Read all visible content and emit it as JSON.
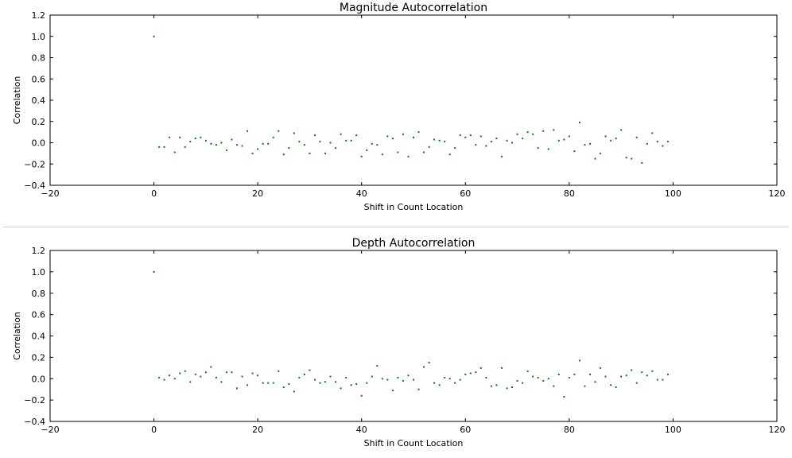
{
  "chart_data": [
    {
      "type": "scatter",
      "title": "Magnitude Autocorrelation",
      "xlabel": "Shift in Count Location",
      "ylabel": "Correlation",
      "xlim": [
        -20,
        120
      ],
      "ylim": [
        -0.4,
        1.2
      ],
      "xticks": [
        "−20",
        "0",
        "20",
        "40",
        "60",
        "80",
        "100",
        "120"
      ],
      "yticks": [
        "−0.4",
        "−0.2",
        "0.0",
        "0.2",
        "0.4",
        "0.6",
        "0.8",
        "1.0",
        "1.2"
      ],
      "grid": false,
      "marker_color": "#008000",
      "series": [
        {
          "x": [
            0,
            1,
            2,
            3,
            4,
            5,
            6,
            7,
            8,
            9,
            10,
            11,
            12,
            13,
            14,
            15,
            16,
            17,
            18,
            19,
            20,
            21,
            22,
            23,
            24,
            25,
            26,
            27,
            28,
            29,
            30,
            31,
            32,
            33,
            34,
            35,
            36,
            37,
            38,
            39,
            40,
            41,
            42,
            43,
            44,
            45,
            46,
            47,
            48,
            49,
            50,
            51,
            52,
            53,
            54,
            55,
            56,
            57,
            58,
            59,
            60,
            61,
            62,
            63,
            64,
            65,
            66,
            67,
            68,
            69,
            70,
            71,
            72,
            73,
            74,
            75,
            76,
            77,
            78,
            79,
            80,
            81,
            82,
            83,
            84,
            85,
            86,
            87,
            88,
            89,
            90,
            91,
            92,
            93,
            94,
            95,
            96,
            97,
            98,
            99
          ],
          "y": [
            1.0,
            -0.04,
            -0.04,
            0.05,
            -0.09,
            0.05,
            -0.04,
            0.01,
            0.04,
            0.05,
            0.02,
            -0.01,
            -0.02,
            0.0,
            -0.07,
            0.03,
            -0.02,
            -0.03,
            0.11,
            -0.1,
            -0.06,
            -0.01,
            -0.01,
            0.05,
            0.11,
            -0.11,
            -0.05,
            0.09,
            0.01,
            -0.02,
            -0.1,
            0.07,
            0.01,
            -0.1,
            0.0,
            -0.05,
            0.08,
            0.02,
            0.02,
            0.07,
            -0.13,
            -0.07,
            -0.01,
            -0.02,
            -0.11,
            0.06,
            0.04,
            -0.09,
            0.08,
            -0.13,
            0.05,
            0.1,
            -0.09,
            -0.04,
            0.03,
            0.02,
            0.01,
            -0.11,
            -0.05,
            0.07,
            0.05,
            0.07,
            -0.02,
            0.06,
            -0.03,
            0.01,
            0.04,
            -0.13,
            0.02,
            0.0,
            0.08,
            0.04,
            0.1,
            0.08,
            -0.05,
            0.11,
            -0.06,
            0.12,
            0.02,
            0.03,
            0.06,
            -0.08,
            0.19,
            -0.02,
            -0.01,
            -0.15,
            -0.1,
            0.06,
            0.02,
            0.04,
            0.12,
            -0.14,
            -0.15,
            0.05,
            -0.19,
            -0.01,
            0.09,
            0.01,
            -0.03,
            0.01
          ]
        }
      ]
    },
    {
      "type": "scatter",
      "title": "Depth Autocorrelation",
      "xlabel": "Shift in Count Location",
      "ylabel": "Correlation",
      "xlim": [
        -20,
        120
      ],
      "ylim": [
        -0.4,
        1.2
      ],
      "xticks": [
        "−20",
        "0",
        "20",
        "40",
        "60",
        "80",
        "100",
        "120"
      ],
      "yticks": [
        "−0.4",
        "−0.2",
        "0.0",
        "0.2",
        "0.4",
        "0.6",
        "0.8",
        "1.0",
        "1.2"
      ],
      "grid": false,
      "marker_color": "#008000",
      "series": [
        {
          "x": [
            0,
            1,
            2,
            3,
            4,
            5,
            6,
            7,
            8,
            9,
            10,
            11,
            12,
            13,
            14,
            15,
            16,
            17,
            18,
            19,
            20,
            21,
            22,
            23,
            24,
            25,
            26,
            27,
            28,
            29,
            30,
            31,
            32,
            33,
            34,
            35,
            36,
            37,
            38,
            39,
            40,
            41,
            42,
            43,
            44,
            45,
            46,
            47,
            48,
            49,
            50,
            51,
            52,
            53,
            54,
            55,
            56,
            57,
            58,
            59,
            60,
            61,
            62,
            63,
            64,
            65,
            66,
            67,
            68,
            69,
            70,
            71,
            72,
            73,
            74,
            75,
            76,
            77,
            78,
            79,
            80,
            81,
            82,
            83,
            84,
            85,
            86,
            87,
            88,
            89,
            90,
            91,
            92,
            93,
            94,
            95,
            96,
            97,
            98,
            99
          ],
          "y": [
            1.0,
            0.01,
            -0.01,
            0.03,
            0.0,
            0.05,
            0.07,
            -0.03,
            0.04,
            0.02,
            0.06,
            0.11,
            0.01,
            -0.03,
            0.06,
            0.06,
            -0.09,
            0.02,
            -0.06,
            0.05,
            0.03,
            -0.04,
            -0.04,
            -0.04,
            0.07,
            -0.08,
            -0.05,
            -0.12,
            0.01,
            0.04,
            0.08,
            -0.01,
            -0.04,
            -0.03,
            0.02,
            -0.03,
            -0.09,
            0.01,
            -0.06,
            -0.05,
            -0.16,
            -0.04,
            0.02,
            0.12,
            0.0,
            -0.01,
            -0.11,
            0.01,
            -0.02,
            0.03,
            -0.01,
            -0.1,
            0.11,
            0.15,
            -0.04,
            -0.06,
            0.01,
            0.0,
            -0.04,
            -0.01,
            0.04,
            0.05,
            0.06,
            0.1,
            0.01,
            -0.07,
            -0.06,
            0.1,
            -0.09,
            -0.08,
            -0.02,
            -0.04,
            0.07,
            0.02,
            0.01,
            -0.02,
            0.0,
            -0.07,
            0.04,
            -0.17,
            0.01,
            0.04,
            0.17,
            -0.07,
            0.04,
            -0.03,
            0.1,
            0.02,
            -0.06,
            -0.08,
            0.02,
            0.03,
            0.08,
            -0.04,
            0.06,
            0.03,
            0.07,
            -0.01,
            -0.01,
            0.04
          ]
        }
      ]
    }
  ]
}
